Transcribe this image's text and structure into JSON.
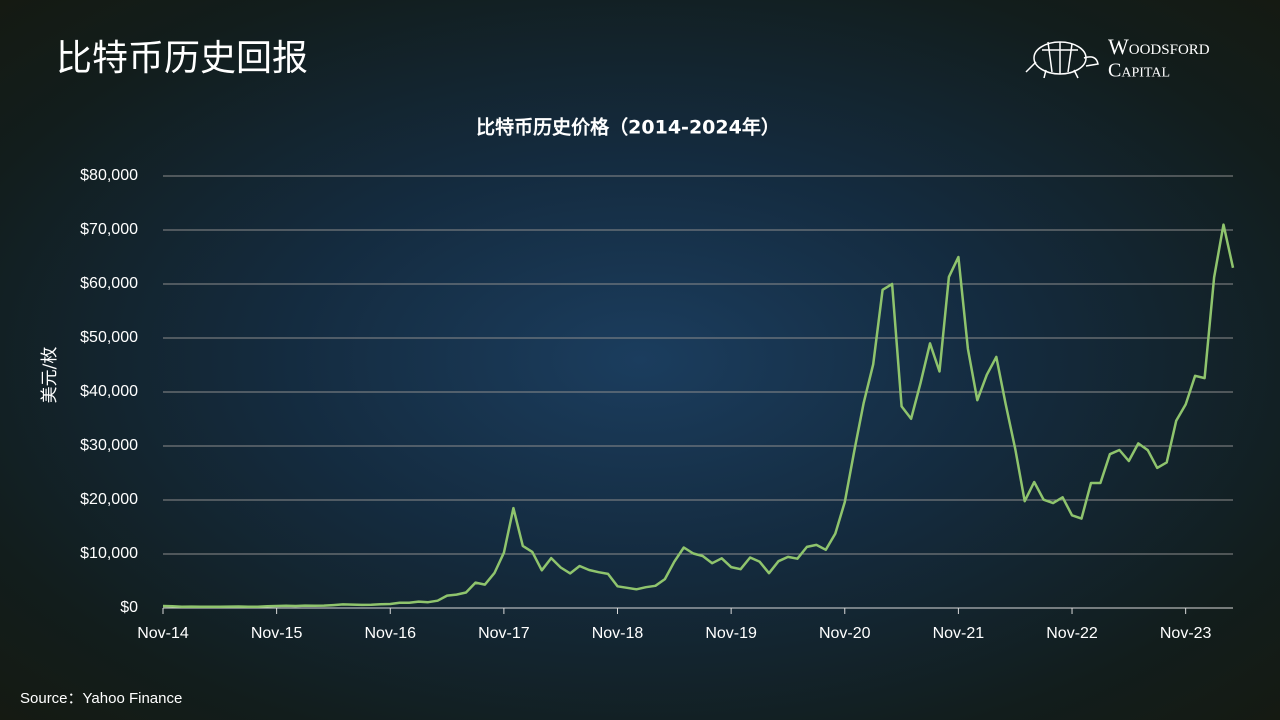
{
  "header": {
    "title": "比特币历史回报",
    "logo": [
      "Woodsford",
      "Capital"
    ]
  },
  "chart_data": {
    "type": "line",
    "title": "比特币历史价格（2014-2024年）",
    "y_label": "美元/枚",
    "color": "#8fc46d",
    "grid": true,
    "categories": [
      "Nov-14",
      null,
      null,
      null,
      null,
      null,
      null,
      null,
      null,
      null,
      null,
      null,
      "Nov-15",
      null,
      null,
      null,
      null,
      null,
      null,
      null,
      null,
      null,
      null,
      null,
      "Nov-16",
      null,
      null,
      null,
      null,
      null,
      null,
      null,
      null,
      null,
      null,
      null,
      "Nov-17",
      null,
      null,
      null,
      null,
      null,
      null,
      null,
      null,
      null,
      null,
      null,
      "Nov-18",
      null,
      null,
      null,
      null,
      null,
      null,
      null,
      null,
      null,
      null,
      null,
      "Nov-19",
      null,
      null,
      null,
      null,
      null,
      null,
      null,
      null,
      null,
      null,
      null,
      "Nov-20",
      null,
      null,
      null,
      null,
      null,
      null,
      null,
      null,
      null,
      null,
      null,
      "Nov-21",
      null,
      null,
      null,
      null,
      null,
      null,
      null,
      null,
      null,
      null,
      null,
      "Nov-22",
      null,
      null,
      null,
      null,
      null,
      null,
      null,
      null,
      null,
      null,
      null,
      "Nov-23",
      null,
      null,
      null,
      null,
      null
    ],
    "values": [
      378,
      320,
      217,
      254,
      244,
      236,
      230,
      263,
      284,
      230,
      236,
      314,
      377,
      430,
      369,
      437,
      416,
      448,
      531,
      673,
      624,
      573,
      609,
      698,
      742,
      963,
      970,
      1190,
      1080,
      1348,
      2300,
      2480,
      2875,
      4700,
      4338,
      6468,
      10233,
      18500,
      11500,
      10397,
      6973,
      9240,
      7494,
      6404,
      7780,
      7037,
      6625,
      6317,
      4017,
      3742,
      3457,
      3854,
      4105,
      5350,
      8574,
      11200,
      10086,
      9630,
      8294,
      9199,
      7569,
      7193,
      9350,
      8599,
      6438,
      8658,
      9461,
      9137,
      11323,
      11680,
      10784,
      13780,
      19625,
      29001,
      38000,
      45137,
      58918,
      60000,
      37332,
      35040,
      41626,
      49000,
      43790,
      61318,
      65000,
      48000,
      38483,
      43194,
      46500,
      37714,
      29500,
      19785,
      23336,
      20050,
      19431,
      20495,
      17168,
      16548,
      23139,
      23147,
      28478,
      29268,
      27219,
      30477,
      29230,
      25940,
      26967,
      34667,
      37712,
      43000,
      42582,
      61198,
      71000,
      63000
    ],
    "ylim": [
      0,
      80000
    ],
    "yticks": [
      {
        "value": 0,
        "label": "$0"
      },
      {
        "value": 10000,
        "label": "$10,000"
      },
      {
        "value": 20000,
        "label": "$20,000"
      },
      {
        "value": 30000,
        "label": "$30,000"
      },
      {
        "value": 40000,
        "label": "$40,000"
      },
      {
        "value": 50000,
        "label": "$50,000"
      },
      {
        "value": 60000,
        "label": "$60,000"
      },
      {
        "value": 70000,
        "label": "$70,000"
      },
      {
        "value": 80000,
        "label": "$80,000"
      }
    ]
  },
  "footer": {
    "source": "Source：Yahoo Finance"
  }
}
